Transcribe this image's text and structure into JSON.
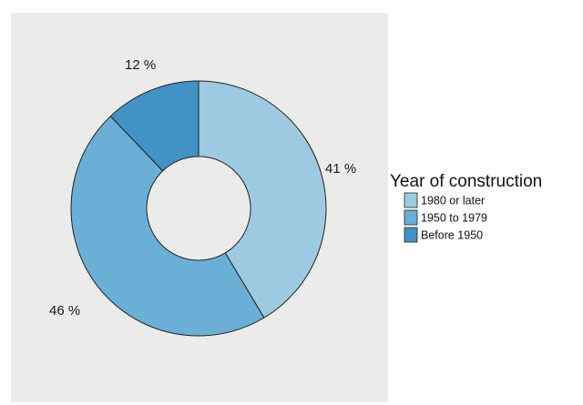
{
  "chart_data": {
    "type": "pie",
    "subtype": "donut",
    "title": "",
    "categories": [
      "1980 or later",
      "1950 to 1979",
      "Before 1950"
    ],
    "values": [
      41,
      46,
      12
    ],
    "value_labels": [
      "41 %",
      "46 %",
      "12 %"
    ],
    "unit": "%",
    "colors": [
      "#9ecae1",
      "#6baed6",
      "#4292c6"
    ],
    "legend": {
      "title": "Year of construction",
      "placement": "right",
      "entries": [
        "1980 or later",
        "1950 to 1979",
        "Before 1950"
      ]
    },
    "panel_background": "#ebebeb",
    "slice_edge_color": "#222222"
  }
}
